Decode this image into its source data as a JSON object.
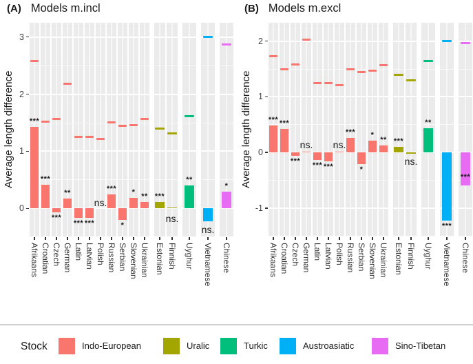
{
  "chart_data": {
    "type": "bar",
    "ylabel": "Average length difference",
    "legend": {
      "title": "Stock",
      "position": "bottom",
      "items": [
        {
          "label": "Indo-European",
          "color": "#F8766D"
        },
        {
          "label": "Uralic",
          "color": "#A3A500"
        },
        {
          "label": "Turkic",
          "color": "#00BF7D"
        },
        {
          "label": "Austroasiatic",
          "color": "#00B0F6"
        },
        {
          "label": "Sino-Tibetan",
          "color": "#E76BF3"
        }
      ]
    },
    "panels": [
      {
        "tag": "(A)",
        "title": "Models m.incl",
        "ylabel": "Average length difference",
        "yticks": [
          0,
          1,
          2,
          3
        ],
        "ylim": [
          -0.49,
          3.25
        ],
        "grid": true,
        "groups": [
          {
            "stock": "Indo-European",
            "color": "#F8766D",
            "bars": [
              {
                "language": "Afrikaans",
                "value": 1.43,
                "crossbar": 2.58,
                "sig": "***",
                "sig_pos": "above"
              },
              {
                "language": "Croatian",
                "value": 0.41,
                "crossbar": 1.52,
                "sig": "***",
                "sig_pos": "above"
              },
              {
                "language": "Czech",
                "value": -0.07,
                "crossbar": 1.57,
                "sig": "***",
                "sig_pos": "below"
              },
              {
                "language": "German",
                "value": 0.17,
                "crossbar": 2.18,
                "sig": "**",
                "sig_pos": "above"
              },
              {
                "language": "Latin",
                "value": -0.17,
                "crossbar": 1.25,
                "sig": "***",
                "sig_pos": "below"
              },
              {
                "language": "Latvian",
                "value": -0.17,
                "crossbar": 1.25,
                "sig": "***",
                "sig_pos": "below"
              },
              {
                "language": "Polish",
                "value": 0.0,
                "crossbar": 1.22,
                "sig": "ns.",
                "sig_pos": "at",
                "sig_at": 0.09
              },
              {
                "language": "Russian",
                "value": 0.24,
                "crossbar": 1.51,
                "sig": "***",
                "sig_pos": "above"
              },
              {
                "language": "Serbian",
                "value": -0.2,
                "crossbar": 1.45,
                "sig": "*",
                "sig_pos": "below"
              },
              {
                "language": "Slovenian",
                "value": 0.18,
                "crossbar": 1.46,
                "sig": "*",
                "sig_pos": "above"
              },
              {
                "language": "Ukrainian",
                "value": 0.11,
                "crossbar": 1.57,
                "sig": "**",
                "sig_pos": "above"
              }
            ]
          },
          {
            "stock": "Uralic",
            "color": "#A3A500",
            "bars": [
              {
                "language": "Estonian",
                "value": 0.11,
                "crossbar": 1.4,
                "sig": "***",
                "sig_pos": "above"
              },
              {
                "language": "Finnish",
                "value": 0.02,
                "crossbar": 1.31,
                "sig": "ns.",
                "sig_pos": "at",
                "sig_at": -0.19
              }
            ]
          },
          {
            "stock": "Turkic",
            "color": "#00BF7D",
            "bars": [
              {
                "language": "Uyghur",
                "value": 0.4,
                "crossbar": 1.61,
                "sig": "**",
                "sig_pos": "above"
              }
            ]
          },
          {
            "stock": "Austroasiatic",
            "color": "#00B0F6",
            "bars": [
              {
                "language": "Vietnamese",
                "value": -0.22,
                "crossbar": 3.0,
                "sig": "ns.",
                "sig_pos": "at",
                "sig_at": -0.38
              }
            ]
          },
          {
            "stock": "Sino-Tibetan",
            "color": "#E76BF3",
            "bars": [
              {
                "language": "Chinese",
                "value": 0.29,
                "crossbar": 2.87,
                "sig": "*",
                "sig_pos": "above"
              }
            ]
          }
        ]
      },
      {
        "tag": "(B)",
        "title": "Models m.excl",
        "ylabel": "Average length difference",
        "yticks": [
          -1,
          0,
          1,
          2
        ],
        "ylim": [
          -1.51,
          2.33
        ],
        "grid": true,
        "groups": [
          {
            "stock": "Indo-European",
            "color": "#F8766D",
            "bars": [
              {
                "language": "Afrikaans",
                "value": 0.48,
                "crossbar": 1.73,
                "sig": "***",
                "sig_pos": "above"
              },
              {
                "language": "Croatian",
                "value": 0.42,
                "crossbar": 1.5,
                "sig": "***",
                "sig_pos": "above"
              },
              {
                "language": "Czech",
                "value": -0.06,
                "crossbar": 1.58,
                "sig": "***",
                "sig_pos": "below"
              },
              {
                "language": "German",
                "value": 0.01,
                "crossbar": 2.03,
                "sig": "ns.",
                "sig_pos": "at",
                "sig_at": 0.12
              },
              {
                "language": "Latin",
                "value": -0.14,
                "crossbar": 1.24,
                "sig": "***",
                "sig_pos": "below"
              },
              {
                "language": "Latvian",
                "value": -0.16,
                "crossbar": 1.25,
                "sig": "***",
                "sig_pos": "below"
              },
              {
                "language": "Polish",
                "value": 0.01,
                "crossbar": 1.21,
                "sig": "ns.",
                "sig_pos": "at",
                "sig_at": 0.12
              },
              {
                "language": "Russian",
                "value": 0.26,
                "crossbar": 1.5,
                "sig": "***",
                "sig_pos": "above"
              },
              {
                "language": "Serbian",
                "value": -0.21,
                "crossbar": 1.45,
                "sig": "*",
                "sig_pos": "below"
              },
              {
                "language": "Slovenian",
                "value": 0.21,
                "crossbar": 1.47,
                "sig": "*",
                "sig_pos": "above"
              },
              {
                "language": "Ukrainian",
                "value": 0.13,
                "crossbar": 1.57,
                "sig": "**",
                "sig_pos": "above"
              }
            ]
          },
          {
            "stock": "Uralic",
            "color": "#A3A500",
            "bars": [
              {
                "language": "Estonian",
                "value": 0.1,
                "crossbar": 1.4,
                "sig": "***",
                "sig_pos": "above"
              },
              {
                "language": "Finnish",
                "value": -0.02,
                "crossbar": 1.3,
                "sig": "ns.",
                "sig_pos": "at",
                "sig_at": -0.17
              }
            ]
          },
          {
            "stock": "Turkic",
            "color": "#00BF7D",
            "bars": [
              {
                "language": "Uyghur",
                "value": 0.43,
                "crossbar": 1.64,
                "sig": "**",
                "sig_pos": "above"
              }
            ]
          },
          {
            "stock": "Austroasiatic",
            "color": "#00B0F6",
            "bars": [
              {
                "language": "Vietnamese",
                "value": -1.22,
                "crossbar": 2.0,
                "sig": "***",
                "sig_pos": "below"
              }
            ]
          },
          {
            "stock": "Sino-Tibetan",
            "color": "#E76BF3",
            "bars": [
              {
                "language": "Chinese",
                "value": -0.59,
                "crossbar": 1.97,
                "sig": "***",
                "sig_pos": "at",
                "sig_at": -0.46
              }
            ]
          }
        ]
      }
    ]
  }
}
